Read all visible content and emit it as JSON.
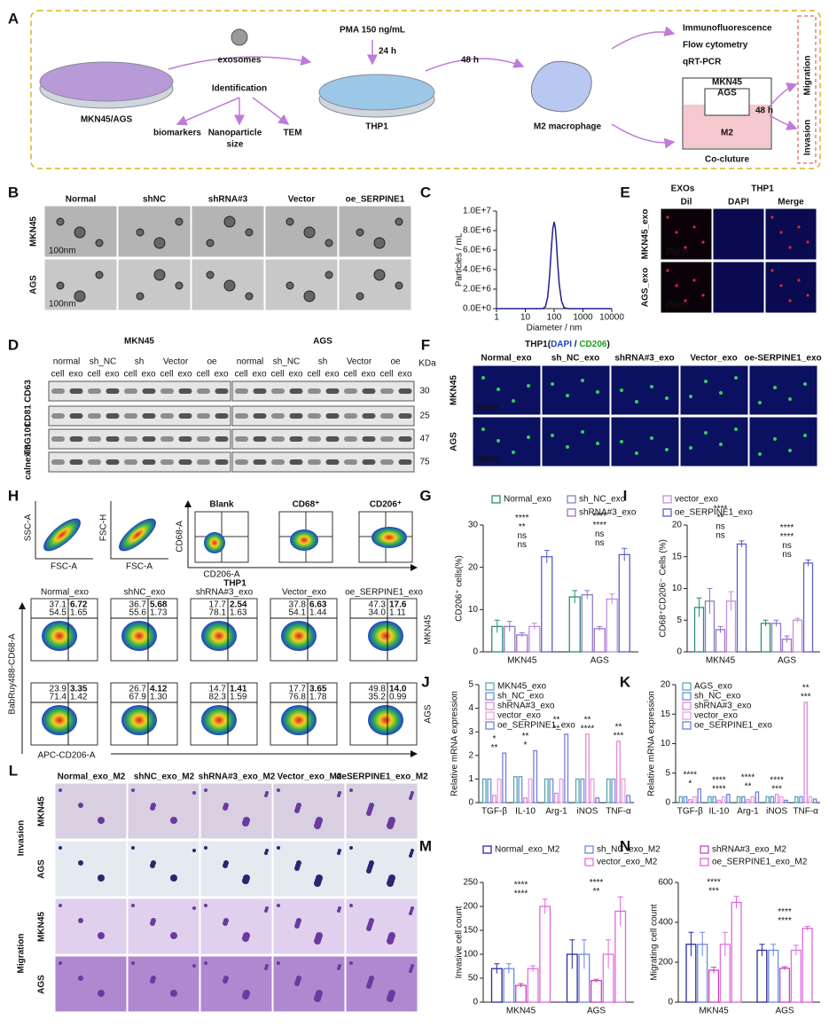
{
  "letters": [
    "A",
    "B",
    "C",
    "D",
    "E",
    "F",
    "G",
    "H",
    "I",
    "J",
    "K",
    "L",
    "M",
    "N"
  ],
  "panels": {
    "A": {
      "exosomes": "exosomes",
      "identification": "Identification",
      "cells": "MKN45/AGS",
      "methods": [
        "biomarkers",
        "Nanoparticle",
        "size",
        "TEM"
      ],
      "pma": "PMA 150 ng/mL",
      "time1": "24 h",
      "thp1": "THP1",
      "time2": "48 h",
      "m2": "M2 macrophage",
      "assays": [
        "Immunofluorescence",
        "Flow cytometry",
        "qRT-PCR"
      ],
      "transwell": [
        "MKN45",
        "AGS"
      ],
      "m2_short": "M2",
      "time3": "48 h",
      "coculture": "Co-cluture",
      "outcomes": [
        "Migration",
        "Invasion"
      ]
    },
    "B": {
      "columns": [
        "Normal",
        "shNC",
        "shRNA#3",
        "Vector",
        "oe_SERPINE1"
      ],
      "rows": [
        "MKN45",
        "AGS"
      ],
      "scale": [
        "100nm",
        "100nm"
      ]
    },
    "D": {
      "blots": [
        {
          "line": "MKN45",
          "groups": [
            "normal",
            "sh_NC",
            "sh",
            "Vector",
            "oe"
          ],
          "lanes": [
            "cell",
            "exo",
            "cell",
            "exo",
            "cell",
            "exo",
            "cell",
            "exo",
            "cell",
            "exo"
          ]
        },
        {
          "line": "AGS",
          "groups": [
            "normal",
            "sh_NC",
            "sh",
            "Vector",
            "oe"
          ],
          "lanes": [
            "cell",
            "exo",
            "cell",
            "exo",
            "cell",
            "exo",
            "cell",
            "exo",
            "cell",
            "exo"
          ]
        }
      ],
      "unit": "KDa",
      "proteins": [
        "CD63",
        "CD81",
        "TSG101",
        "calnexin"
      ],
      "sizes": [
        "30",
        "25",
        "47",
        "75"
      ]
    },
    "E": {
      "headers": [
        "EXOs",
        "THP1"
      ],
      "channels": [
        "Dil",
        "DAPI",
        "Merge"
      ],
      "rows": [
        "MKN45_exo",
        "AGS_exo"
      ],
      "scale": [
        "25μm",
        "25μm"
      ]
    },
    "F": {
      "title": [
        "THP1(",
        "DAPI",
        " / ",
        "CD206",
        ")"
      ],
      "columns": [
        "Normal_exo",
        "sh_NC_exo",
        "shRNA#3_exo",
        "Vector_exo",
        "oe-SERPINE1_exo"
      ],
      "rows": [
        "MKN45",
        "AGS"
      ],
      "scale": [
        "50μm",
        "50μm"
      ]
    },
    "H": {
      "gating": [
        {
          "y": "SSC-A",
          "x": "FSC-A"
        },
        {
          "y": "FSC-H",
          "x": "FSC-A"
        }
      ],
      "gates": [
        "Blank",
        "CD68⁺",
        "CD206⁺"
      ],
      "gate_y": "CD68-A",
      "gate_x": "CD206-A",
      "title": "THP1",
      "columns": [
        "Normal_exo",
        "shNC_exo",
        "shRNA#3_exo",
        "Vector_exo",
        "oe_SERPINE1_exo"
      ],
      "plots": [
        [
          [
            "37.1",
            "6.72",
            "54.5",
            "1.65"
          ],
          [
            "36.7",
            "5.68",
            "55.6",
            "1.73"
          ],
          [
            "17.7",
            "2.54",
            "78.1",
            "1.63"
          ],
          [
            "37.8",
            "6.63",
            "54.1",
            "1.44"
          ],
          [
            "47.3",
            "17.6",
            "34.0",
            "1.11"
          ]
        ],
        [
          [
            "23.9",
            "3.35",
            "71.4",
            "1.42"
          ],
          [
            "26.7",
            "4.12",
            "67.9",
            "1.30"
          ],
          [
            "14.7",
            "1.41",
            "82.3",
            "1.59"
          ],
          [
            "17.7",
            "3.65",
            "76.8",
            "1.78"
          ],
          [
            "49.8",
            "14.0",
            "35.2",
            "0.99"
          ]
        ]
      ],
      "y": "BabRuy488-CD68-A",
      "x": "APC-CD206-A",
      "rows": [
        "MKN45",
        "AGS"
      ]
    },
    "L": {
      "columns": [
        "Normal_exo_M2",
        "shNC_exo_M2",
        "shRNA#3_exo_M2",
        "Vector_exo_M2",
        "oeSERPINE1_exo_M2"
      ],
      "assays": [
        "Invasion",
        "Migration"
      ],
      "rows": [
        "MKN45",
        "AGS",
        "MKN45",
        "AGS"
      ]
    }
  },
  "chart_data": [
    {
      "type": "line",
      "xlabel": "Diameter / nm",
      "ylabel": "Particles / mL",
      "xlog": true,
      "x": [
        1,
        10,
        30,
        40,
        50,
        60,
        70,
        80,
        90,
        100,
        110,
        120,
        130,
        150,
        180,
        220,
        300,
        1000,
        10000
      ],
      "series": [
        {
          "color": "#1f1f8f",
          "values": [
            0,
            0,
            0,
            0,
            200000,
            1200000,
            3500000,
            6200000,
            8200000,
            8900000,
            8300000,
            6800000,
            5000000,
            2500000,
            800000,
            100000,
            0,
            0,
            0
          ]
        }
      ],
      "xlim": [
        1,
        10000
      ],
      "xticks": [
        1,
        10,
        100,
        1000,
        10000
      ],
      "ylim": [
        0,
        10000000
      ],
      "yticks": [
        {
          "value": 0,
          "label": "0.0E+0"
        },
        {
          "value": 2000000,
          "label": "2.0E+6"
        },
        {
          "value": 4000000,
          "label": "4.0E+6"
        },
        {
          "value": 6000000,
          "label": "6.0E+6"
        },
        {
          "value": 8000000,
          "label": "8.0E+6"
        },
        {
          "value": 10000000,
          "label": "1.0E+7"
        }
      ]
    },
    {
      "type": "bar",
      "ylabel": "CD206⁺ cells(%)",
      "categories": [
        "MKN45",
        "AGS"
      ],
      "series": [
        {
          "name": "Normal_exo",
          "color": "#2e8b7a",
          "values": [
            6,
            13
          ],
          "errors": [
            1.5,
            1.5
          ]
        },
        {
          "name": "sh_NC_exo",
          "color": "#8a7cc8",
          "values": [
            6,
            13.5
          ],
          "errors": [
            1.2,
            1
          ]
        },
        {
          "name": "shRNA#3_exo",
          "color": "#a070c8",
          "values": [
            4,
            5.5
          ],
          "errors": [
            0.5,
            0.5
          ]
        },
        {
          "color": "#c090e0",
          "values": [
            6,
            12.5
          ],
          "errors": [
            0.8,
            1.2
          ]
        },
        {
          "color": "#5a60c8",
          "values": [
            22.5,
            23
          ],
          "errors": [
            1.5,
            1.5
          ]
        }
      ],
      "ylim": [
        0,
        30
      ],
      "yticks": [
        0,
        10,
        20,
        30
      ],
      "annotations": [
        [
          "ns",
          "ns",
          "**",
          "****"
        ],
        [
          "ns",
          "ns",
          "****",
          "****"
        ]
      ]
    },
    {
      "type": "bar",
      "ylabel": "CD68⁺CD206⁻ Cells (%)",
      "categories": [
        "MKN45",
        "AGS"
      ],
      "series": [
        {
          "color": "#2e8b7a",
          "values": [
            7,
            4.5
          ],
          "errors": [
            1.5,
            0.5
          ]
        },
        {
          "color": "#8a7cc8",
          "values": [
            8,
            4.5
          ],
          "errors": [
            2,
            0.5
          ]
        },
        {
          "color": "#a070c8",
          "values": [
            3.5,
            2
          ],
          "errors": [
            0.5,
            0.5
          ]
        },
        {
          "name": "vector_exo",
          "color": "#c090e0",
          "values": [
            8,
            5
          ],
          "errors": [
            1.5,
            0.3
          ]
        },
        {
          "name": "oe_SERPINE1_exo",
          "color": "#5a60c8",
          "values": [
            17,
            14
          ],
          "errors": [
            0.5,
            0.5
          ]
        }
      ],
      "ylim": [
        0,
        20
      ],
      "yticks": [
        0,
        5,
        10,
        15,
        20
      ],
      "annotations": [
        [
          "ns",
          "ns",
          "**",
          "****"
        ],
        [
          "ns",
          "ns",
          "****",
          "****"
        ]
      ]
    },
    {
      "type": "bar",
      "ylabel": "Relative mRNA expression",
      "categories": [
        "TGF-β",
        "IL-10",
        "Arg-1",
        "iNOS",
        "TNF-α"
      ],
      "series": [
        {
          "name": "MKN45_exo",
          "color": "#5aa8b0",
          "values": [
            1,
            1.1,
            1,
            1,
            1
          ]
        },
        {
          "name": "sh_NC_exo",
          "color": "#6c8fd8",
          "values": [
            1,
            1.1,
            1,
            1,
            1
          ]
        },
        {
          "name": "shRNA#3_exo",
          "color": "#e08ad8",
          "values": [
            0.3,
            0.2,
            0.4,
            2.9,
            2.6
          ]
        },
        {
          "name": "vector_exo",
          "color": "#e8a0e0",
          "values": [
            1,
            1,
            1,
            1,
            1
          ]
        },
        {
          "name": "oe_SERPINE1_exo",
          "color": "#7080d8",
          "values": [
            2.1,
            2.2,
            2.9,
            0.2,
            0.3
          ]
        }
      ],
      "ylim": [
        0,
        5
      ],
      "yticks": [
        0,
        1,
        2,
        3,
        4,
        5
      ],
      "annotations": [
        [
          "**",
          "*"
        ],
        [
          "*",
          "**"
        ],
        [
          "**",
          "**"
        ],
        [
          "****",
          "**"
        ],
        [
          "***",
          "**"
        ]
      ]
    },
    {
      "type": "bar",
      "ylabel": "Relative mRNA expression",
      "categories": [
        "TGF-β",
        "IL-10",
        "Arg-1",
        "iNOS",
        "TNF-α"
      ],
      "series": [
        {
          "name": "AGS_exo",
          "color": "#5aa8b0",
          "values": [
            1,
            1,
            1,
            1,
            1
          ]
        },
        {
          "name": "sh_NC_exo",
          "color": "#6c8fd8",
          "values": [
            1,
            1,
            1,
            1,
            1
          ]
        },
        {
          "name": "shRNA#3_exo",
          "color": "#e08ad8",
          "values": [
            0.5,
            0.4,
            0.5,
            1.4,
            17
          ]
        },
        {
          "name": "vector_exo",
          "color": "#e8a0e0",
          "values": [
            1,
            1,
            1,
            1,
            1
          ]
        },
        {
          "name": "oe_SERPINE1_exo",
          "color": "#7080d8",
          "values": [
            2.3,
            1.4,
            1.8,
            0.4,
            0.6
          ]
        }
      ],
      "ylim": [
        0,
        20
      ],
      "yticks": [
        0,
        5,
        10,
        15,
        20
      ],
      "annotations": [
        [
          "*",
          "****"
        ],
        [
          "****",
          "****"
        ],
        [
          "**",
          "****"
        ],
        [
          "***",
          "****"
        ],
        [
          "***",
          "**"
        ]
      ]
    },
    {
      "type": "bar",
      "ylabel": "Invasive cell count",
      "categories": [
        "MKN45",
        "AGS"
      ],
      "series": [
        {
          "name": "Normal_exo_M2",
          "color": "#2b2ba0",
          "values": [
            70,
            100
          ],
          "errors": [
            10,
            30
          ]
        },
        {
          "name": "sh_NC_exo_M2",
          "color": "#6b8be0",
          "values": [
            70,
            100
          ],
          "errors": [
            10,
            30
          ]
        },
        {
          "name": "shRNA#3_exo_M2",
          "color": "#cc44bb",
          "values": [
            35,
            45
          ],
          "errors": [
            4,
            3
          ]
        },
        {
          "name": "vector_exo_M2",
          "color": "#e070e0",
          "values": [
            70,
            100
          ],
          "errors": [
            6,
            30
          ]
        },
        {
          "name": "oe_SERPINE1_exo_M2",
          "color": "#dd66dd",
          "values": [
            200,
            190
          ],
          "errors": [
            15,
            30
          ]
        }
      ],
      "ylim": [
        0,
        250
      ],
      "yticks": [
        0,
        50,
        100,
        150,
        200,
        250
      ],
      "annotations": [
        [
          "****",
          "****"
        ],
        [
          "**",
          "****"
        ]
      ]
    },
    {
      "type": "bar",
      "ylabel": "Migrating cell count",
      "categories": [
        "MKN45",
        "AGS"
      ],
      "series": [
        {
          "color": "#2b2ba0",
          "values": [
            290,
            260
          ],
          "errors": [
            60,
            30
          ]
        },
        {
          "color": "#6b8be0",
          "values": [
            290,
            260
          ],
          "errors": [
            60,
            30
          ]
        },
        {
          "color": "#cc44bb",
          "values": [
            160,
            170
          ],
          "errors": [
            15,
            8
          ]
        },
        {
          "color": "#e070e0",
          "values": [
            290,
            260
          ],
          "errors": [
            60,
            25
          ]
        },
        {
          "color": "#dd66dd",
          "values": [
            500,
            370
          ],
          "errors": [
            30,
            10
          ]
        }
      ],
      "ylim": [
        0,
        600
      ],
      "yticks": [
        0,
        200,
        400,
        600
      ],
      "annotations": [
        [
          "***",
          "****"
        ],
        [
          "****",
          "****"
        ]
      ]
    }
  ]
}
